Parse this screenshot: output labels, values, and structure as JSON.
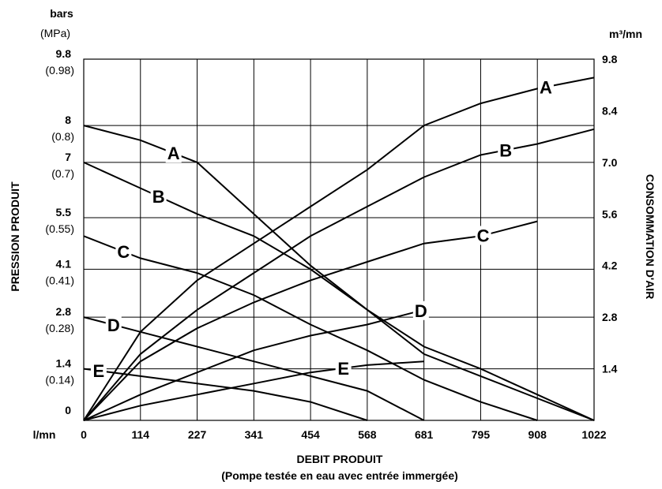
{
  "chart_data": {
    "type": "line",
    "left_axis": {
      "unit_top": "bars",
      "unit_bottom": "(MPa)",
      "title": "PRESSION PRODUIT",
      "ticks": [
        {
          "v": 0,
          "main": "0",
          "sub": ""
        },
        {
          "v": 1.4,
          "main": "1.4",
          "sub": "(0.14)"
        },
        {
          "v": 2.8,
          "main": "2.8",
          "sub": "(0.28)"
        },
        {
          "v": 4.1,
          "main": "4.1",
          "sub": "(0.41)"
        },
        {
          "v": 5.5,
          "main": "5.5",
          "sub": "(0.55)"
        },
        {
          "v": 7,
          "main": "7",
          "sub": "(0.7)"
        },
        {
          "v": 8,
          "main": "8",
          "sub": "(0.8)"
        },
        {
          "v": 9.8,
          "main": "9.8",
          "sub": "(0.98)"
        }
      ],
      "ylim": [
        0,
        9.8
      ]
    },
    "right_axis": {
      "unit": "m³/mn",
      "title": "CONSOMMATION D'AIR",
      "ticks": [
        "1.4",
        "2.8",
        "4.2",
        "5.6",
        "7.0",
        "8.4",
        "9.8"
      ],
      "values": [
        1.4,
        2.8,
        4.2,
        5.6,
        7.0,
        8.4,
        9.8
      ],
      "ylim": [
        0,
        9.8
      ]
    },
    "x_axis": {
      "unit": "l/mn",
      "title": "DEBIT PRODUIT",
      "subtitle": "(Pompe testée en eau avec entrée immergée)",
      "ticks": [
        "0",
        "114",
        "227",
        "341",
        "454",
        "568",
        "681",
        "795",
        "908",
        "1022"
      ],
      "values": [
        0,
        114,
        227,
        341,
        454,
        568,
        681,
        795,
        908,
        1022
      ],
      "xlim": [
        0,
        1022
      ]
    },
    "grid": true,
    "pressure_series": [
      {
        "name": "A",
        "points": [
          [
            0,
            8.0
          ],
          [
            114,
            7.6
          ],
          [
            227,
            7.0
          ],
          [
            341,
            5.6
          ],
          [
            454,
            4.2
          ],
          [
            568,
            3.0
          ],
          [
            681,
            2.0
          ],
          [
            795,
            1.4
          ],
          [
            908,
            0.7
          ],
          [
            1022,
            0
          ]
        ],
        "label_at": 180
      },
      {
        "name": "B",
        "points": [
          [
            0,
            7.0
          ],
          [
            114,
            6.3
          ],
          [
            227,
            5.6
          ],
          [
            341,
            5.0
          ],
          [
            454,
            4.1
          ],
          [
            568,
            3.0
          ],
          [
            681,
            1.8
          ],
          [
            795,
            1.2
          ],
          [
            908,
            0.6
          ],
          [
            1022,
            0
          ]
        ],
        "label_at": 150
      },
      {
        "name": "C",
        "points": [
          [
            0,
            5.0
          ],
          [
            114,
            4.4
          ],
          [
            227,
            4.0
          ],
          [
            341,
            3.4
          ],
          [
            454,
            2.6
          ],
          [
            568,
            1.9
          ],
          [
            681,
            1.1
          ],
          [
            795,
            0.5
          ],
          [
            908,
            0
          ]
        ],
        "label_at": 80
      },
      {
        "name": "D",
        "points": [
          [
            0,
            2.8
          ],
          [
            114,
            2.4
          ],
          [
            227,
            2.0
          ],
          [
            341,
            1.6
          ],
          [
            454,
            1.2
          ],
          [
            568,
            0.8
          ],
          [
            681,
            0
          ]
        ],
        "label_at": 60
      },
      {
        "name": "E",
        "points": [
          [
            0,
            1.4
          ],
          [
            114,
            1.2
          ],
          [
            227,
            1.0
          ],
          [
            341,
            0.8
          ],
          [
            454,
            0.5
          ],
          [
            568,
            0
          ]
        ],
        "label_at": 30
      }
    ],
    "air_series": [
      {
        "name": "A",
        "points": [
          [
            0,
            0
          ],
          [
            114,
            2.4
          ],
          [
            227,
            3.8
          ],
          [
            341,
            4.8
          ],
          [
            454,
            5.8
          ],
          [
            568,
            6.8
          ],
          [
            681,
            8.0
          ],
          [
            795,
            8.6
          ],
          [
            908,
            9.0
          ],
          [
            1022,
            9.3
          ]
        ],
        "label_at": 925
      },
      {
        "name": "B",
        "points": [
          [
            0,
            0
          ],
          [
            114,
            1.8
          ],
          [
            227,
            3.0
          ],
          [
            341,
            4.0
          ],
          [
            454,
            5.0
          ],
          [
            568,
            5.8
          ],
          [
            681,
            6.6
          ],
          [
            795,
            7.2
          ],
          [
            908,
            7.5
          ],
          [
            1022,
            7.9
          ]
        ],
        "label_at": 845
      },
      {
        "name": "C",
        "points": [
          [
            0,
            0
          ],
          [
            114,
            1.6
          ],
          [
            227,
            2.5
          ],
          [
            341,
            3.2
          ],
          [
            454,
            3.8
          ],
          [
            568,
            4.3
          ],
          [
            681,
            4.8
          ],
          [
            795,
            5.0
          ],
          [
            908,
            5.4
          ]
        ],
        "label_at": 800
      },
      {
        "name": "D",
        "points": [
          [
            0,
            0
          ],
          [
            114,
            0.7
          ],
          [
            227,
            1.3
          ],
          [
            341,
            1.9
          ],
          [
            454,
            2.3
          ],
          [
            568,
            2.6
          ],
          [
            681,
            3.0
          ]
        ],
        "label_at": 675
      },
      {
        "name": "E",
        "points": [
          [
            0,
            0
          ],
          [
            114,
            0.4
          ],
          [
            227,
            0.7
          ],
          [
            341,
            1.0
          ],
          [
            454,
            1.3
          ],
          [
            568,
            1.5
          ],
          [
            681,
            1.6
          ]
        ],
        "label_at": 520
      }
    ]
  }
}
